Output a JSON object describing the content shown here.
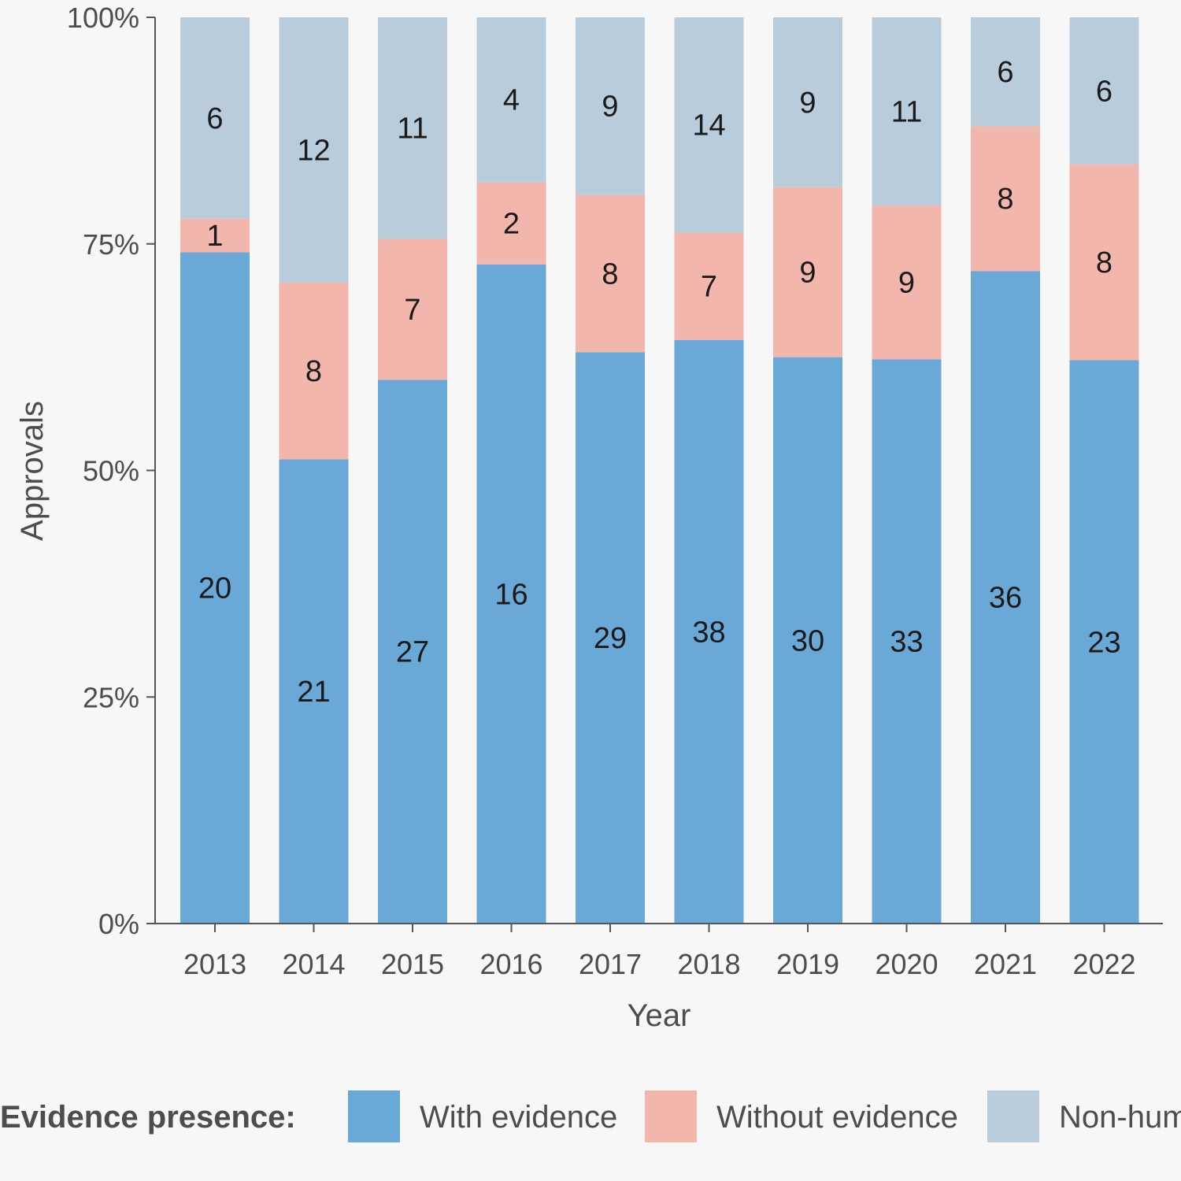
{
  "chart_data": {
    "type": "bar",
    "stacked": true,
    "normalized": true,
    "categories": [
      "2013",
      "2014",
      "2015",
      "2016",
      "2017",
      "2018",
      "2019",
      "2020",
      "2021",
      "2022"
    ],
    "series": [
      {
        "name": "With evidence",
        "color": "#6aa8d8",
        "values": [
          20,
          21,
          27,
          16,
          29,
          38,
          30,
          33,
          36,
          23
        ]
      },
      {
        "name": "Without evidence",
        "color": "#f2b6ad",
        "values": [
          1,
          8,
          7,
          2,
          8,
          7,
          9,
          9,
          8,
          8
        ]
      },
      {
        "name": "Non-human",
        "color": "#b8ccdb",
        "values": [
          6,
          12,
          11,
          4,
          9,
          14,
          9,
          11,
          6,
          6
        ]
      }
    ],
    "xlabel": "Year",
    "ylabel": "Approvals",
    "ylim": [
      0,
      1
    ],
    "yticks": [
      "0%",
      "25%",
      "50%",
      "75%",
      "100%"
    ],
    "legend": {
      "title": "Evidence presence:",
      "position": "bottom"
    },
    "grid": false
  }
}
